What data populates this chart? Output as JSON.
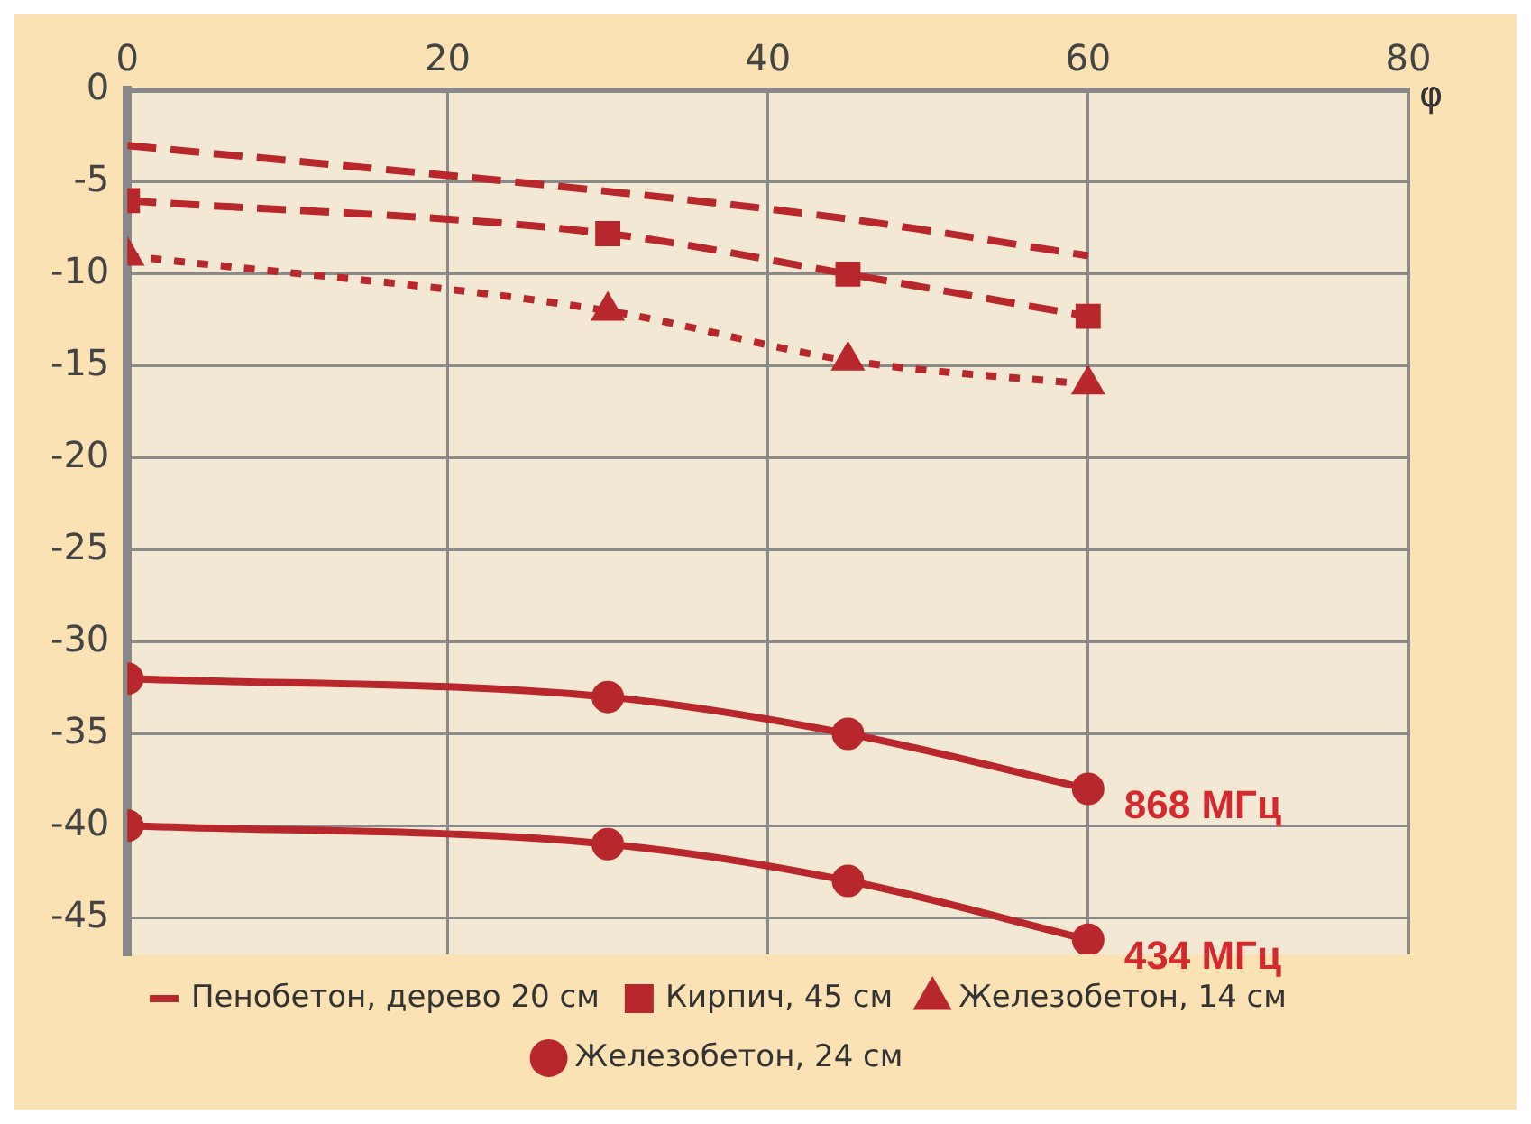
{
  "chart_data": {
    "type": "line",
    "xlabel": "φ",
    "x": [
      0,
      30,
      45,
      60
    ],
    "xlim": [
      0,
      80
    ],
    "xticks": [
      0,
      20,
      40,
      60,
      80
    ],
    "ylim": [
      -47,
      0
    ],
    "yticks": [
      0,
      -5,
      -10,
      -15,
      -20,
      -25,
      -30,
      -35,
      -40,
      -45
    ],
    "grid": true,
    "legend": "bottom",
    "series": [
      {
        "name": "Пенобетон, дерево 20 см",
        "color": "#b8272c",
        "values": [
          -3,
          -5.5,
          -7,
          -9
        ],
        "marker": "none",
        "line_style": "dashed"
      },
      {
        "name": "Кирпич, 45 см",
        "color": "#b8272c",
        "values": [
          -6,
          -7.8,
          -10,
          -12.3
        ],
        "marker": "square",
        "line_style": "dashed"
      },
      {
        "name": "Железобетон, 14 см",
        "color": "#b8272c",
        "values": [
          -9,
          -12,
          -14.7,
          -16
        ],
        "marker": "triangle",
        "line_style": "dotted"
      },
      {
        "name": "Железобетон, 24 см",
        "color": "#b8272c",
        "values": [
          -32,
          -33,
          -35,
          -38
        ],
        "marker": "circle",
        "line_style": "solid"
      },
      {
        "color": "#b8272c",
        "values": [
          -40,
          -41,
          -43,
          -46.2
        ],
        "marker": "circle",
        "line_style": "solid"
      }
    ],
    "annotations": [
      {
        "text": "868 МГц",
        "x": 60,
        "y": -38
      },
      {
        "text": "434 МГц",
        "x": 60,
        "y": -46.2
      }
    ]
  }
}
